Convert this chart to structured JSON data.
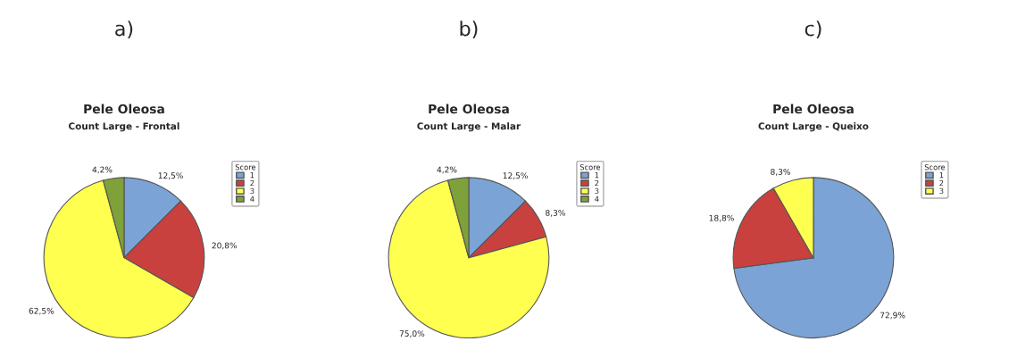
{
  "chart_data": [
    {
      "type": "pie",
      "title": "Pele Oleosa",
      "subtitle": "Count Large - Frontal",
      "annotations": [
        "a)"
      ],
      "legend_title": "Score",
      "legend": "right",
      "categories": [
        "1",
        "2",
        "3",
        "4"
      ],
      "values": [
        12.5,
        20.8,
        62.5,
        4.2
      ],
      "value_labels": [
        "12,5%",
        "20,8%",
        "62,5%",
        "4,2%"
      ],
      "colors": [
        "#7ba3d6",
        "#c8413e",
        "#ffff4f",
        "#7fa13a"
      ]
    },
    {
      "type": "pie",
      "title": "Pele Oleosa",
      "subtitle": "Count Large - Malar",
      "annotations": [
        "b)"
      ],
      "legend_title": "Score",
      "legend": "right",
      "categories": [
        "1",
        "2",
        "3",
        "4"
      ],
      "values": [
        12.5,
        8.3,
        75.0,
        4.2
      ],
      "value_labels": [
        "12,5%",
        "8,3%",
        "75,0%",
        "4,2%"
      ],
      "colors": [
        "#7ba3d6",
        "#c8413e",
        "#ffff4f",
        "#7fa13a"
      ]
    },
    {
      "type": "pie",
      "title": "Pele Oleosa",
      "subtitle": "Count Large - Queixo",
      "annotations": [
        "c)"
      ],
      "legend_title": "Score",
      "legend": "right",
      "categories": [
        "1",
        "2",
        "3"
      ],
      "values": [
        72.9,
        18.8,
        8.3
      ],
      "value_labels": [
        "72,9%",
        "18,8%",
        "8,3%"
      ],
      "colors": [
        "#7ba3d6",
        "#c8413e",
        "#ffff4f"
      ]
    }
  ]
}
